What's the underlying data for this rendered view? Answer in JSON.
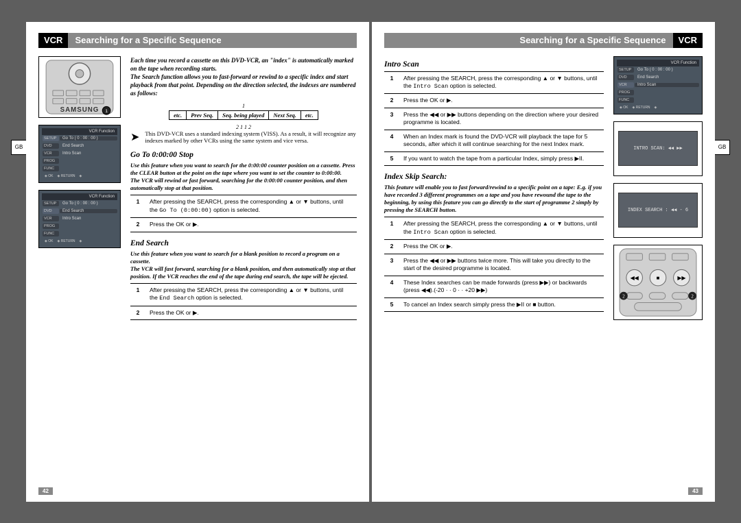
{
  "leftPage": {
    "sideTab": "GB",
    "headerTag": "VCR",
    "headerTitle": "Searching for a Specific Sequence",
    "pageNum": "42",
    "intro": "Each time you record a cassette on this DVD-VCR, an \"index\" is automatically marked on the tape when recording starts.\nThe Search function allows you to fast-forward or rewind to a specific index and start playback from that point. Depending on the direction selected, the indexes are numbered as follows:",
    "idxTable": {
      "topNum": "1",
      "headers": [
        "etc.",
        "Prev Seq.",
        "Seq. being played",
        "Next Seq.",
        "etc."
      ],
      "botNums": [
        "2",
        "1",
        "",
        "1",
        "2"
      ]
    },
    "note": "This DVD-VCR uses a standard indexing system (VISS). As a result, it will recognize any indexes marked by other VCRs using the same system and vice versa.",
    "sections": [
      {
        "title": "Go To 0:00:00 Stop",
        "desc": "Use this feature when you want to search for the 0:00:00 counter position on a cassette. Press the CLEAR button at the point on the tape where you want to set the counter to 0:00:00.\nThe VCR will rewind or fast forward, searching for the 0:00:00 counter position, and then automatically stop at that position.",
        "steps": [
          {
            "n": "1",
            "t": "After pressing the SEARCH, press the corresponding ▲ or ▼ buttons, until the  Go To (0:00:00) option is selected."
          },
          {
            "n": "2",
            "t": "Press the OK or ▶."
          }
        ]
      },
      {
        "title": "End Search",
        "desc": "Use this feature when you want to search for a blank position to record a program on a cassette.\nThe VCR will fast forward, searching for a blank position, and then automatically stop at that position. If the VCR reaches the end of the tape during end search, the tape will be ejected.",
        "steps": [
          {
            "n": "1",
            "t": "After pressing the SEARCH, press the corresponding ▲ or ▼ buttons, until the End Search option is selected."
          },
          {
            "n": "2",
            "t": "Press the OK or ▶."
          }
        ]
      }
    ],
    "osdTitle": "VCR Function",
    "osdItems": [
      {
        "side": "SETUP",
        "label": "Go To ( 0 : 00 : 00 )",
        "hl": true
      },
      {
        "side": "DVD",
        "label": "End Search",
        "hl": false
      },
      {
        "side": "VCR",
        "label": "Intro Scan",
        "hl": false
      },
      {
        "side": "PROG",
        "label": "",
        "hl": false
      },
      {
        "side": "FUNC",
        "label": "",
        "hl": false
      }
    ],
    "osdFooter": [
      "◈ OK",
      "◈ RETURN",
      "◈"
    ]
  },
  "rightPage": {
    "sideTab": "GB",
    "headerTag": "VCR",
    "headerTitle": "Searching for a Specific Sequence",
    "pageNum": "43",
    "sections": [
      {
        "title": "Intro Scan",
        "desc": "",
        "steps": [
          {
            "n": "1",
            "t": "After pressing the SEARCH, press the corresponding ▲ or ▼ buttons, until the Intro Scan option is selected."
          },
          {
            "n": "2",
            "t": "Press the OK or ▶."
          },
          {
            "n": "3",
            "t": "Press the ◀◀ or ▶▶ buttons depending on the direction where your desired programme is located."
          },
          {
            "n": "4",
            "t": "When an Index mark is found the DVD-VCR will playback the tape for 5 seconds, after which it will continue searching for the next Index mark."
          },
          {
            "n": "5",
            "t": "If you want to watch the tape from a particular Index, simply press ▶II."
          }
        ]
      },
      {
        "title": "Index Skip Search:",
        "desc": "This feature will enable you to fast forward/rewind to a specific point on a tape: E.g. if you have recorded 3 different programmes on a tape and you have rewound the tape to the beginning, by using this feature you can go directly to the start of programme 2 simply by pressing the SEARCH button.",
        "steps": [
          {
            "n": "1",
            "t": "After pressing the SEARCH, press the corresponding ▲ or ▼ buttons, until the Intro Scan option is selected."
          },
          {
            "n": "2",
            "t": "Press the OK or ▶."
          },
          {
            "n": "3",
            "t": "Press the ◀◀ or ▶▶ buttons twice more. This will take you directly to the start of the desired programme is located."
          },
          {
            "n": "4",
            "t": "These Index searches can be made forwards (press ▶▶) or backwards (press ◀◀).(-20 · · 0 · · +20 ▶▶)"
          },
          {
            "n": "5",
            "t": "To cancel an Index search simply press the ▶II or ■ button."
          }
        ]
      }
    ],
    "osdTitle": "VCR Function",
    "osdItems": [
      {
        "side": "SETUP",
        "label": "Go To ( 0 : 00 : 00 )",
        "hl": false
      },
      {
        "side": "DVD",
        "label": "End Search",
        "hl": false
      },
      {
        "side": "VCR",
        "label": "Intro Scan",
        "hl": true
      },
      {
        "side": "PROG",
        "label": "",
        "hl": false
      },
      {
        "side": "FUNC",
        "label": "",
        "hl": false
      }
    ],
    "osdFooter": [
      "◈ OK",
      "◈ RETURN",
      "◈"
    ],
    "box1": "INTRO SCAN: ◀◀ ▶▶",
    "box2": "INDEX SEARCH : ◀◀ - 6"
  }
}
